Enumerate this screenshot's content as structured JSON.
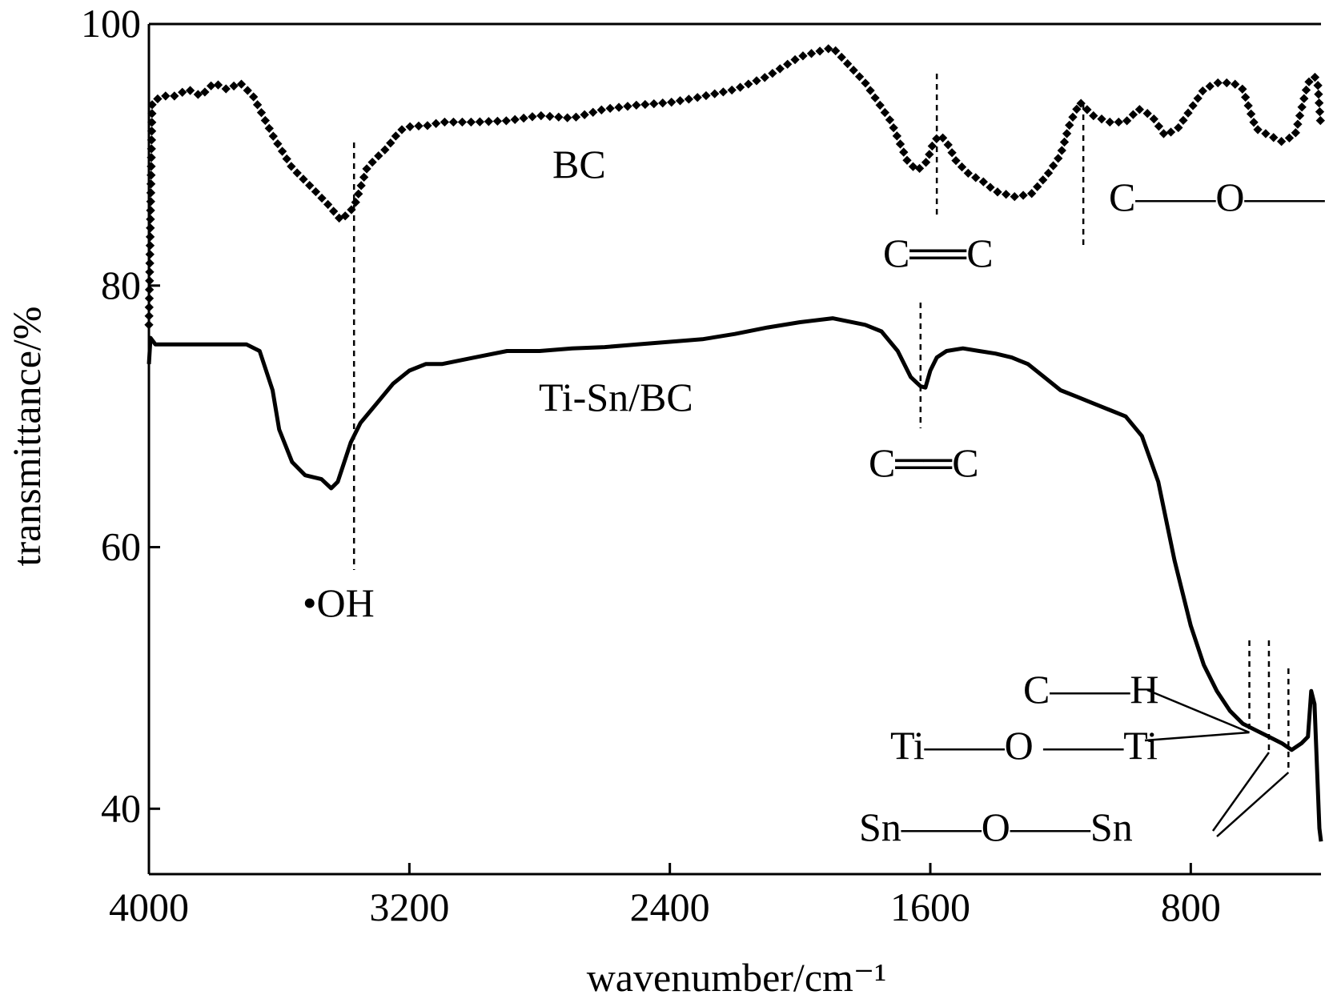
{
  "chart_data": {
    "type": "line",
    "title": "",
    "xlabel": "wavenumber/cm⁻¹",
    "ylabel": "transmittance/%",
    "xlim": [
      4000,
      400
    ],
    "ylim": [
      35,
      100
    ],
    "x_reversed": true,
    "grid": false,
    "legend": "none",
    "xticks": [
      {
        "value": 4000,
        "label": "4000"
      },
      {
        "value": 3200,
        "label": "3200"
      },
      {
        "value": 2400,
        "label": "2400"
      },
      {
        "value": 1600,
        "label": "1600"
      },
      {
        "value": 800,
        "label": "800"
      }
    ],
    "yticks": [
      {
        "value": 100,
        "label": "100"
      },
      {
        "value": 80,
        "label": "80"
      },
      {
        "value": 60,
        "label": "60"
      },
      {
        "value": 40,
        "label": "40"
      }
    ],
    "series": [
      {
        "name": "BC",
        "style": "dotted-markers",
        "color": "#000000",
        "x": [
          4000,
          3990,
          3960,
          3920,
          3880,
          3840,
          3800,
          3760,
          3720,
          3680,
          3620,
          3560,
          3500,
          3450,
          3410,
          3370,
          3330,
          3300,
          3270,
          3240,
          3220,
          3190,
          3150,
          3100,
          3000,
          2900,
          2800,
          2700,
          2600,
          2500,
          2400,
          2330,
          2200,
          2100,
          2000,
          1900,
          1800,
          1720,
          1670,
          1640,
          1610,
          1590,
          1570,
          1550,
          1520,
          1480,
          1440,
          1400,
          1340,
          1290,
          1240,
          1200,
          1170,
          1140,
          1100,
          1050,
          1000,
          960,
          920,
          880,
          840,
          800,
          760,
          720,
          700,
          670,
          640,
          600,
          560,
          520,
          480,
          440,
          420,
          410,
          400
        ],
        "y": [
          77,
          94,
          94.5,
          94.5,
          95,
          94.5,
          95.5,
          95,
          95.5,
          94.5,
          91.5,
          89,
          87.5,
          86.2,
          85,
          86,
          89,
          89.8,
          90.5,
          91.5,
          92,
          92.2,
          92.2,
          92.5,
          92.5,
          92.6,
          93,
          92.8,
          93.5,
          93.8,
          94,
          94.3,
          95,
          96,
          97.5,
          98.2,
          95.5,
          92.5,
          89.5,
          88.8,
          89.5,
          91,
          91.5,
          91,
          89.5,
          88.5,
          88,
          87.2,
          86.8,
          87,
          88.5,
          90,
          92.5,
          94,
          93,
          92.5,
          92.5,
          93.5,
          93,
          91.5,
          92,
          93.5,
          95,
          95.5,
          95.5,
          95.5,
          95,
          92,
          91.5,
          91,
          91.5,
          95.5,
          96,
          95.5,
          92
        ]
      },
      {
        "name": "Ti-Sn/BC",
        "style": "solid",
        "color": "#000000",
        "x": [
          4000,
          3995,
          3980,
          3950,
          3900,
          3860,
          3820,
          3780,
          3740,
          3700,
          3660,
          3620,
          3600,
          3560,
          3520,
          3470,
          3440,
          3420,
          3400,
          3380,
          3350,
          3300,
          3250,
          3200,
          3150,
          3100,
          3000,
          2900,
          2800,
          2700,
          2600,
          2500,
          2400,
          2300,
          2200,
          2100,
          2000,
          1900,
          1800,
          1750,
          1700,
          1660,
          1630,
          1615,
          1600,
          1580,
          1550,
          1500,
          1450,
          1400,
          1350,
          1300,
          1250,
          1200,
          1150,
          1100,
          1050,
          1000,
          950,
          900,
          850,
          800,
          760,
          720,
          680,
          640,
          600,
          560,
          520,
          490,
          460,
          440,
          430,
          420,
          412,
          405,
          400
        ],
        "y": [
          74,
          76,
          75.5,
          75.5,
          75.5,
          75.5,
          75.5,
          75.5,
          75.5,
          75.5,
          75,
          72,
          69,
          66.5,
          65.5,
          65.2,
          64.5,
          65,
          66.5,
          68,
          69.5,
          71,
          72.5,
          73.5,
          74,
          74,
          74.5,
          75,
          75,
          75.2,
          75.3,
          75.5,
          75.7,
          75.9,
          76.3,
          76.8,
          77.2,
          77.5,
          77,
          76.5,
          75,
          73,
          72.3,
          72.2,
          73.5,
          74.5,
          75,
          75.2,
          75,
          74.8,
          74.5,
          74,
          73,
          72,
          71.5,
          71,
          70.5,
          70,
          68.5,
          65,
          59,
          54,
          51,
          49,
          47.5,
          46.5,
          46,
          45.5,
          45,
          44.5,
          45,
          45.5,
          49,
          48,
          43,
          38.5,
          37.5
        ]
      }
    ],
    "series_labels": [
      {
        "text": "BC",
        "series": "BC"
      },
      {
        "text": "Ti-Sn/BC",
        "series": "Ti-Sn/BC"
      }
    ],
    "annotations": [
      {
        "text": "•OH",
        "x": 3370
      },
      {
        "text": "C══C",
        "x": 1580,
        "series": "BC"
      },
      {
        "text": "C——O——C",
        "x": 1150
      },
      {
        "text": "C══C",
        "x": 1630,
        "series": "Ti-Sn/BC"
      },
      {
        "text": "C——H",
        "x": 620
      },
      {
        "text": "Ti——O ——Ti",
        "x": 620
      },
      {
        "text": "Sn——O——Sn",
        "x": 560
      }
    ],
    "marker_lines_x": [
      3370,
      1580,
      1130,
      1630,
      620,
      560,
      500
    ]
  }
}
